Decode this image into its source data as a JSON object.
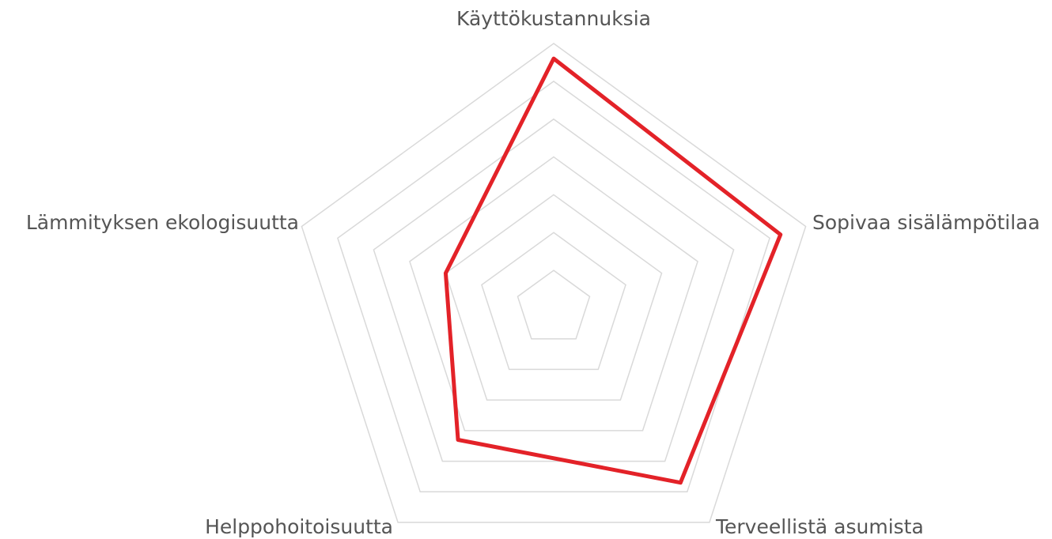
{
  "chart_data": {
    "type": "radar",
    "categories": [
      "Käyttökustannuksia",
      "Sopivaa sisälämpötilaa",
      "Terveellistä asumista",
      "Helppohoitoisuutta",
      "Lämmityksen ekologisuutta"
    ],
    "values": [
      6.6,
      6.3,
      5.7,
      4.3,
      3.0
    ],
    "color": "#e32228",
    "rlim": [
      0,
      7
    ],
    "rticks": [
      1,
      2,
      3,
      4,
      5,
      6,
      7
    ],
    "grid": true
  }
}
